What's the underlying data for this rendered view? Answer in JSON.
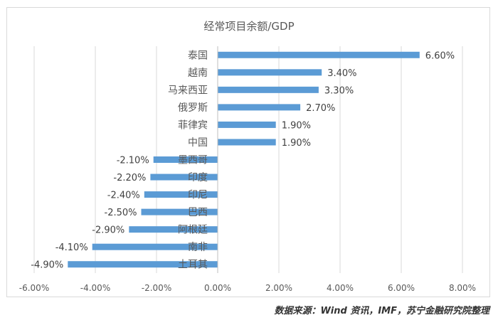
{
  "chart_data": {
    "type": "bar",
    "orientation": "horizontal",
    "title": "经常项目余额/GDP",
    "categories": [
      "泰国",
      "越南",
      "马来西亚",
      "俄罗斯",
      "菲律宾",
      "中国",
      "墨西哥",
      "印度",
      "印尼",
      "巴西",
      "阿根廷",
      "南非",
      "土耳其"
    ],
    "values": [
      6.6,
      3.4,
      3.3,
      2.7,
      1.9,
      1.9,
      -2.1,
      -2.2,
      -2.4,
      -2.5,
      -2.9,
      -4.1,
      -4.9
    ],
    "data_labels": [
      "6.60%",
      "3.40%",
      "3.30%",
      "2.70%",
      "1.90%",
      "1.90%",
      "-2.10%",
      "-2.20%",
      "-2.40%",
      "-2.50%",
      "-2.90%",
      "-4.10%",
      "-4.90%"
    ],
    "xlim": [
      -6,
      8
    ],
    "xticks": [
      -6,
      -4,
      -2,
      0,
      2,
      4,
      6,
      8
    ],
    "xtick_labels": [
      "-6.00%",
      "-4.00%",
      "-2.00%",
      "0.00%",
      "2.00%",
      "4.00%",
      "6.00%",
      "8.00%"
    ],
    "grid": true,
    "bar_color": "#5b9bd5",
    "grid_color": "#d9d9d9"
  },
  "source_note": "数据来源：Wind 资讯，IMF，苏宁金融研究院整理"
}
